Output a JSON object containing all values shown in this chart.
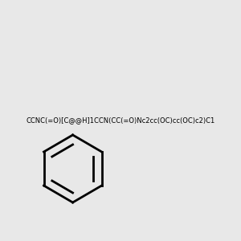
{
  "smiles": "CCNC(=O)[C@@H]1CCN(CC(=O)Nc2cc(OC)cc(OC)c2)C1",
  "image_size": 300,
  "background_color": "#e8e8e8",
  "title": ""
}
